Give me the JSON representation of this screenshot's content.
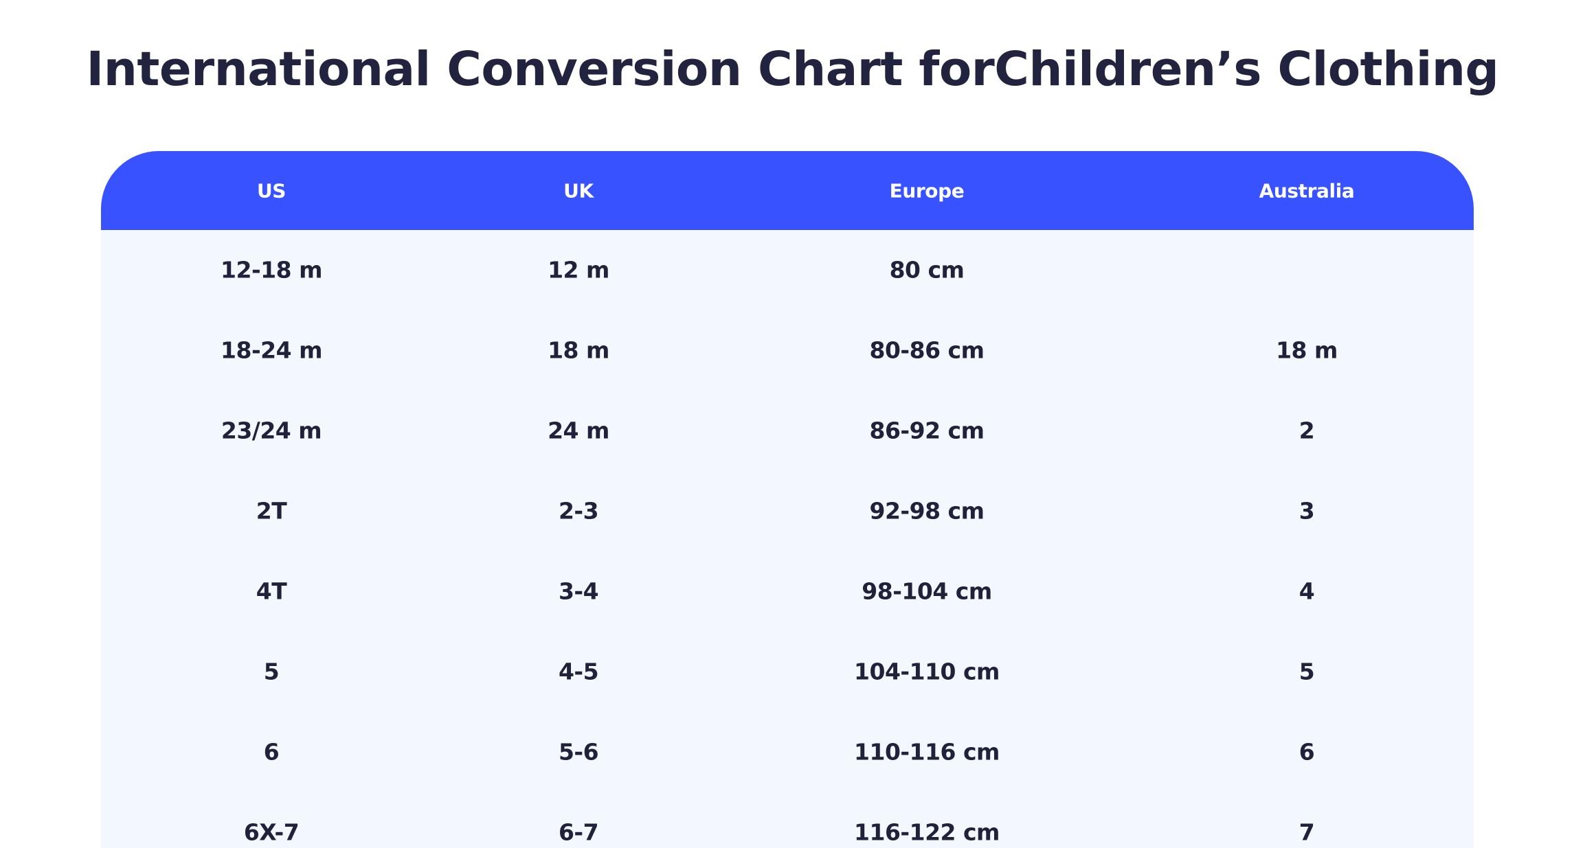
{
  "title": "International Conversion Chart forChildren’s Clothing",
  "table": {
    "headers": {
      "us": "US",
      "uk": "UK",
      "europe": "Europe",
      "australia": "Australia"
    },
    "rows": [
      {
        "us": "12-18 m",
        "uk": "12 m",
        "europe": "80 cm",
        "australia": ""
      },
      {
        "us": "18-24 m",
        "uk": "18 m",
        "europe": "80-86 cm",
        "australia": "18 m"
      },
      {
        "us": "23/24 m",
        "uk": "24 m",
        "europe": "86-92 cm",
        "australia": "2"
      },
      {
        "us": "2T",
        "uk": "2-3",
        "europe": "92-98 cm",
        "australia": "3"
      },
      {
        "us": "4T",
        "uk": "3-4",
        "europe": "98-104 cm",
        "australia": "4"
      },
      {
        "us": "5",
        "uk": "4-5",
        "europe": "104-110 cm",
        "australia": "5"
      },
      {
        "us": "6",
        "uk": "5-6",
        "europe": "110-116 cm",
        "australia": "6"
      },
      {
        "us": "6X-7",
        "uk": "6-7",
        "europe": "116-122 cm",
        "australia": "7"
      }
    ]
  },
  "colors": {
    "header_background": "#3852ff",
    "body_background": "#f3f7fe",
    "title_text": "#22233f",
    "cell_text": "#20223a"
  }
}
